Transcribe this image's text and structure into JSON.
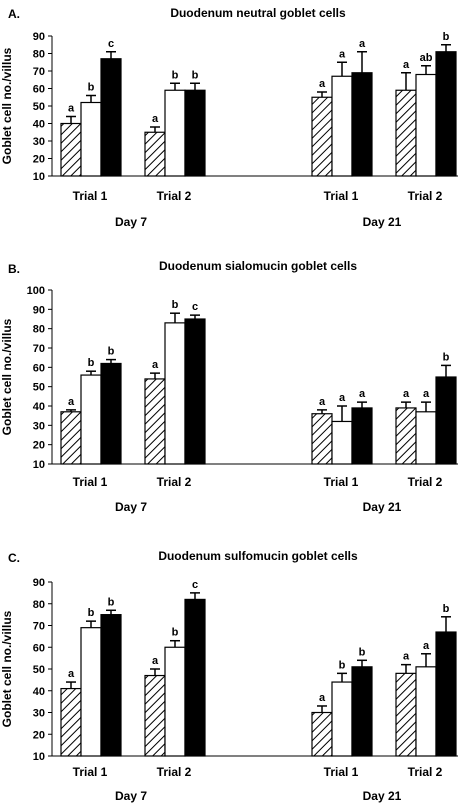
{
  "ylabel": "Goblet cell no./villus",
  "group_labels": [
    "Day 7",
    "Day 21"
  ],
  "trial_labels": [
    "Trial 1",
    "Trial 2"
  ],
  "chart_data": [
    {
      "type": "bar",
      "panel": "A.",
      "title": "Duodenum neutral goblet cells",
      "ylabel": "Goblet cell no./villus",
      "ylim": [
        10,
        90
      ],
      "ticks": [
        10,
        20,
        30,
        40,
        50,
        60,
        70,
        80,
        90
      ],
      "categories": [
        "Day 7 Trial 1",
        "Day 7 Trial 2",
        "Day 21 Trial 1",
        "Day 21 Trial 2"
      ],
      "series": [
        {
          "fill": "hatched",
          "values": [
            40,
            35,
            55,
            59
          ],
          "errors": [
            4,
            3,
            3,
            10
          ],
          "letters": [
            "a",
            "a",
            "a",
            "a"
          ]
        },
        {
          "fill": "white",
          "values": [
            52,
            59,
            67,
            68
          ],
          "errors": [
            4,
            4,
            8,
            5
          ],
          "letters": [
            "b",
            "b",
            "a",
            "ab"
          ]
        },
        {
          "fill": "black",
          "values": [
            77,
            59,
            69,
            81
          ],
          "errors": [
            4,
            4,
            12,
            4
          ],
          "letters": [
            "c",
            "b",
            "a",
            "b"
          ]
        }
      ]
    },
    {
      "type": "bar",
      "panel": "B.",
      "title": "Duodenum sialomucin goblet cells",
      "ylabel": "Goblet cell no./villus",
      "ylim": [
        10,
        100
      ],
      "ticks": [
        10,
        20,
        30,
        40,
        50,
        60,
        70,
        80,
        90,
        100
      ],
      "categories": [
        "Day 7 Trial 1",
        "Day 7 Trial 2",
        "Day 21 Trial 1",
        "Day 21 Trial 2"
      ],
      "series": [
        {
          "fill": "hatched",
          "values": [
            37,
            54,
            36,
            39
          ],
          "errors": [
            1,
            3,
            2,
            3
          ],
          "letters": [
            "a",
            "a",
            "a",
            "a"
          ]
        },
        {
          "fill": "white",
          "values": [
            56,
            83,
            32,
            37
          ],
          "errors": [
            2,
            5,
            8,
            5
          ],
          "letters": [
            "b",
            "b",
            "a",
            "a"
          ]
        },
        {
          "fill": "black",
          "values": [
            62,
            85,
            39,
            55
          ],
          "errors": [
            2,
            2,
            3,
            6
          ],
          "letters": [
            "b",
            "c",
            "a",
            "b"
          ]
        }
      ]
    },
    {
      "type": "bar",
      "panel": "C.",
      "title": "Duodenum sulfomucin goblet cells",
      "ylabel": "Goblet cell no./villus",
      "ylim": [
        10,
        90
      ],
      "ticks": [
        10,
        20,
        30,
        40,
        50,
        60,
        70,
        80,
        90
      ],
      "categories": [
        "Day 7 Trial 1",
        "Day 7 Trial 2",
        "Day 21 Trial 1",
        "Day 21 Trial 2"
      ],
      "series": [
        {
          "fill": "hatched",
          "values": [
            41,
            47,
            30,
            48
          ],
          "errors": [
            3,
            3,
            3,
            4
          ],
          "letters": [
            "a",
            "a",
            "a",
            "a"
          ]
        },
        {
          "fill": "white",
          "values": [
            69,
            60,
            44,
            51
          ],
          "errors": [
            3,
            3,
            4,
            6
          ],
          "letters": [
            "b",
            "b",
            "b",
            "a"
          ]
        },
        {
          "fill": "black",
          "values": [
            75,
            82,
            51,
            67
          ],
          "errors": [
            2,
            3,
            3,
            7
          ],
          "letters": [
            "b",
            "c",
            "b",
            "b"
          ]
        }
      ]
    }
  ]
}
